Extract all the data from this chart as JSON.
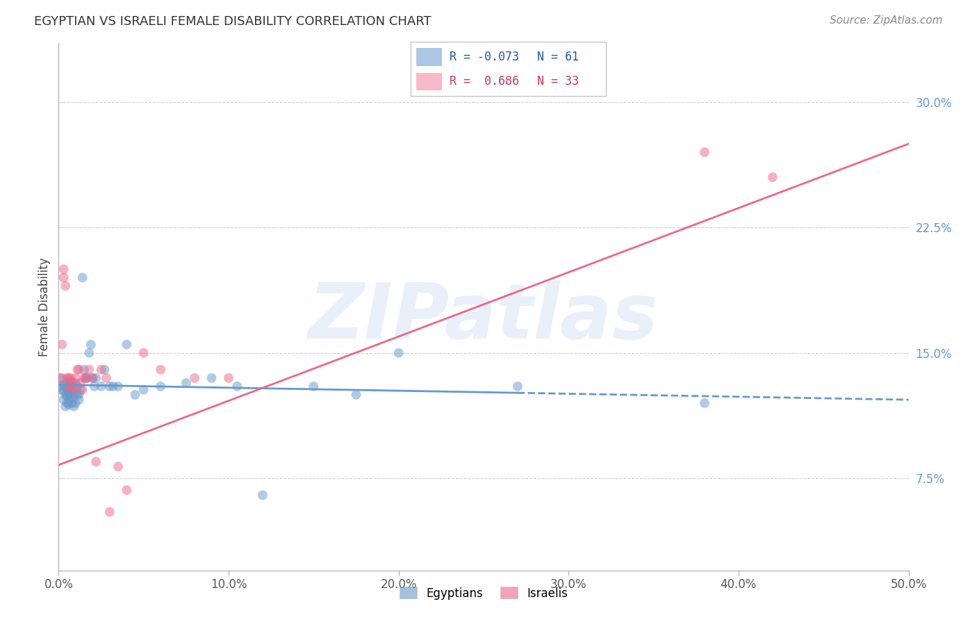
{
  "title": "EGYPTIAN VS ISRAELI FEMALE DISABILITY CORRELATION CHART",
  "source": "Source: ZipAtlas.com",
  "ylabel": "Female Disability",
  "xlim": [
    0.0,
    0.5
  ],
  "ylim": [
    0.02,
    0.335
  ],
  "yticks": [
    0.075,
    0.15,
    0.225,
    0.3
  ],
  "ytick_labels": [
    "7.5%",
    "15.0%",
    "22.5%",
    "30.0%"
  ],
  "xticks": [
    0.0,
    0.1,
    0.2,
    0.3,
    0.4,
    0.5
  ],
  "xtick_labels": [
    "0.0%",
    "10.0%",
    "20.0%",
    "30.0%",
    "40.0%",
    "50.0%"
  ],
  "blue_color": "#6699cc",
  "pink_color": "#ee6688",
  "scatter_alpha": 0.5,
  "scatter_size": 100,
  "blue_line_solid_end": 0.27,
  "blue_points_x": [
    0.001,
    0.002,
    0.002,
    0.003,
    0.003,
    0.003,
    0.004,
    0.004,
    0.004,
    0.005,
    0.005,
    0.005,
    0.005,
    0.006,
    0.006,
    0.006,
    0.006,
    0.007,
    0.007,
    0.007,
    0.007,
    0.008,
    0.008,
    0.008,
    0.009,
    0.009,
    0.01,
    0.01,
    0.01,
    0.011,
    0.011,
    0.012,
    0.012,
    0.013,
    0.014,
    0.015,
    0.016,
    0.017,
    0.018,
    0.019,
    0.02,
    0.021,
    0.022,
    0.025,
    0.027,
    0.03,
    0.032,
    0.035,
    0.04,
    0.045,
    0.05,
    0.06,
    0.075,
    0.09,
    0.105,
    0.12,
    0.15,
    0.175,
    0.2,
    0.27,
    0.38
  ],
  "blue_points_y": [
    0.13,
    0.128,
    0.135,
    0.122,
    0.127,
    0.131,
    0.118,
    0.125,
    0.13,
    0.12,
    0.127,
    0.132,
    0.124,
    0.119,
    0.126,
    0.13,
    0.122,
    0.125,
    0.13,
    0.128,
    0.133,
    0.12,
    0.127,
    0.123,
    0.118,
    0.125,
    0.128,
    0.132,
    0.12,
    0.125,
    0.13,
    0.122,
    0.125,
    0.128,
    0.195,
    0.14,
    0.135,
    0.135,
    0.15,
    0.155,
    0.135,
    0.13,
    0.135,
    0.13,
    0.14,
    0.13,
    0.13,
    0.13,
    0.155,
    0.125,
    0.128,
    0.13,
    0.132,
    0.135,
    0.13,
    0.065,
    0.13,
    0.125,
    0.15,
    0.13,
    0.12
  ],
  "pink_points_x": [
    0.001,
    0.002,
    0.003,
    0.003,
    0.004,
    0.005,
    0.006,
    0.006,
    0.007,
    0.007,
    0.008,
    0.009,
    0.01,
    0.011,
    0.012,
    0.013,
    0.014,
    0.015,
    0.016,
    0.018,
    0.02,
    0.022,
    0.025,
    0.028,
    0.03,
    0.035,
    0.04,
    0.05,
    0.06,
    0.08,
    0.1,
    0.38,
    0.42
  ],
  "pink_points_y": [
    0.135,
    0.155,
    0.195,
    0.2,
    0.19,
    0.135,
    0.13,
    0.135,
    0.13,
    0.135,
    0.132,
    0.128,
    0.135,
    0.14,
    0.14,
    0.132,
    0.128,
    0.135,
    0.135,
    0.14,
    0.135,
    0.085,
    0.14,
    0.135,
    0.055,
    0.082,
    0.068,
    0.15,
    0.14,
    0.135,
    0.135,
    0.27,
    0.255
  ],
  "watermark": "ZIPatlas",
  "legend_blue_label": "Egyptians",
  "legend_pink_label": "Israelis",
  "legend_R_blue": "R = -0.073",
  "legend_N_blue": "N = 61",
  "legend_R_pink": "R =  0.686",
  "legend_N_pink": "N = 33"
}
